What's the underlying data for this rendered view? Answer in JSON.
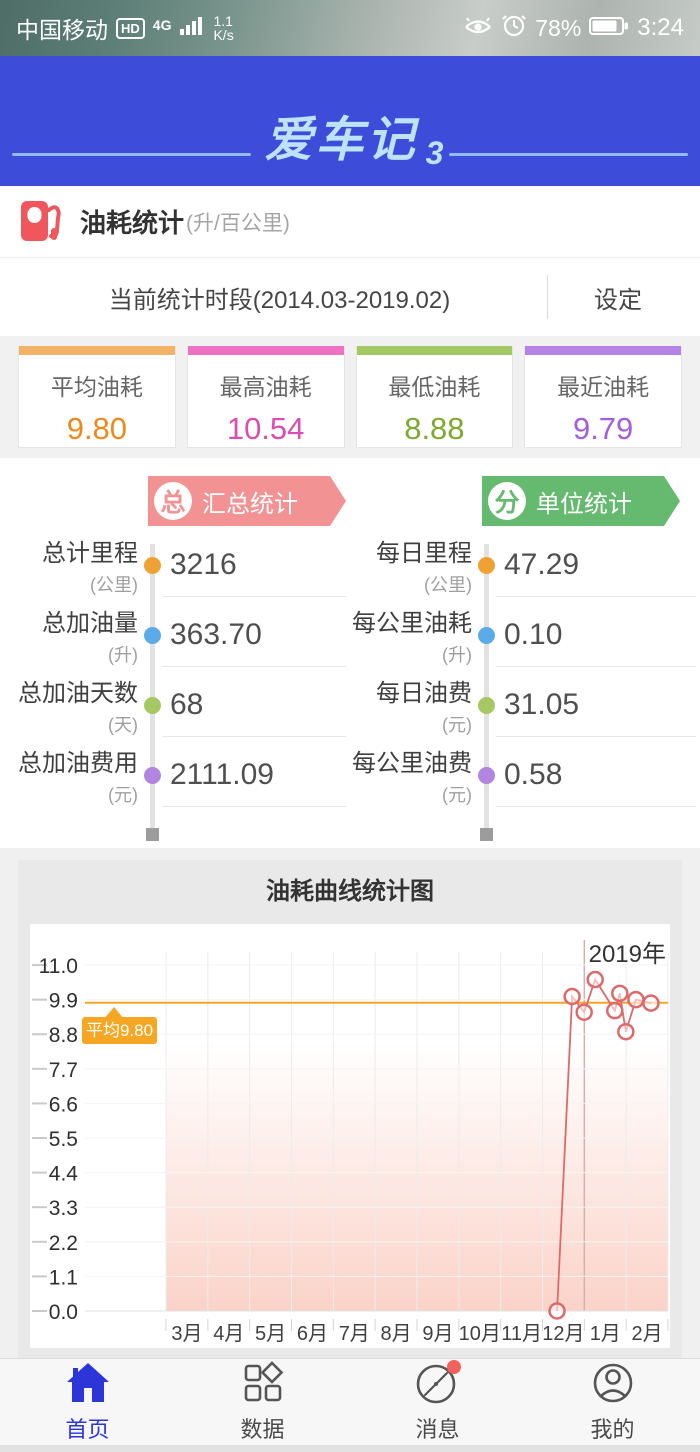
{
  "status_bar": {
    "carrier": "中国移动",
    "hd": "HD",
    "network": "4G",
    "speed_value": "1.1",
    "speed_unit": "K/s",
    "battery_percent": "78%",
    "time": "3:24"
  },
  "header": {
    "logo_text": "爱车记",
    "logo_suffix": "3",
    "bg_color": "#3d4cd9"
  },
  "page": {
    "title": "油耗统计",
    "title_unit": "(升/百公里)",
    "period_label": "当前统计时段(2014.03-2019.02)",
    "settings_label": "设定"
  },
  "stat_cards": [
    {
      "label": "平均油耗",
      "value": "9.80",
      "bar_color": "#f2b366",
      "value_color": "#ee8a1d"
    },
    {
      "label": "最高油耗",
      "value": "10.54",
      "bar_color": "#ee72c3",
      "value_color": "#dc4db4"
    },
    {
      "label": "最低油耗",
      "value": "8.88",
      "bar_color": "#a4c964",
      "value_color": "#7ea830"
    },
    {
      "label": "最近油耗",
      "value": "9.79",
      "bar_color": "#b583e8",
      "value_color": "#a45ddd"
    }
  ],
  "summary": {
    "left": {
      "badge": "总",
      "title": "汇总统计",
      "color": "#f29292",
      "rows": [
        {
          "label": "总计里程",
          "unit": "(公里)",
          "value": "3216",
          "dot": "#efa233"
        },
        {
          "label": "总加油量",
          "unit": "(升)",
          "value": "363.70",
          "dot": "#5aabe8"
        },
        {
          "label": "总加油天数",
          "unit": "(天)",
          "value": "68",
          "dot": "#a6c863"
        },
        {
          "label": "总加油费用",
          "unit": "(元)",
          "value": "2111.09",
          "dot": "#b185e0"
        }
      ]
    },
    "right": {
      "badge": "分",
      "title": "单位统计",
      "color": "#66ba70",
      "rows": [
        {
          "label": "每日里程",
          "unit": "(公里)",
          "value": "47.29",
          "dot": "#efa233"
        },
        {
          "label": "每公里油耗",
          "unit": "(升)",
          "value": "0.10",
          "dot": "#5aabe8"
        },
        {
          "label": "每日油费",
          "unit": "(元)",
          "value": "31.05",
          "dot": "#a6c863"
        },
        {
          "label": "每公里油费",
          "unit": "(元)",
          "value": "0.58",
          "dot": "#b185e0"
        }
      ]
    }
  },
  "chart_section": {
    "title": "油耗曲线统计图"
  },
  "chart_data": {
    "type": "line",
    "title": "油耗曲线统计图",
    "year_label": "2019年",
    "categories": [
      "3月",
      "4月",
      "5月",
      "6月",
      "7月",
      "8月",
      "9月",
      "10月",
      "11月",
      "12月",
      "1月",
      "2月"
    ],
    "yticks": [
      "11.0",
      "9.9",
      "8.8",
      "7.7",
      "6.6",
      "5.5",
      "4.4",
      "3.3",
      "2.2",
      "1.1",
      "0.0"
    ],
    "ylim": [
      0,
      11.0
    ],
    "average": 9.8,
    "average_label": "平均9.80",
    "average_color": "#f5a623",
    "line_color": "#dd6a6a",
    "area_color": "#f4967d",
    "grid": true,
    "points": [
      {
        "x": 0.779,
        "v": 0.0
      },
      {
        "x": 0.809,
        "v": 10.0
      },
      {
        "x": 0.833,
        "v": 9.5
      },
      {
        "x": 0.855,
        "v": 10.54
      },
      {
        "x": 0.894,
        "v": 9.55
      },
      {
        "x": 0.904,
        "v": 10.1
      },
      {
        "x": 0.916,
        "v": 8.88
      },
      {
        "x": 0.936,
        "v": 9.9
      },
      {
        "x": 0.966,
        "v": 9.79
      }
    ]
  },
  "nav": {
    "active_color": "#2b35d8",
    "items": [
      {
        "label": "首页"
      },
      {
        "label": "数据"
      },
      {
        "label": "消息"
      },
      {
        "label": "我的"
      }
    ]
  }
}
